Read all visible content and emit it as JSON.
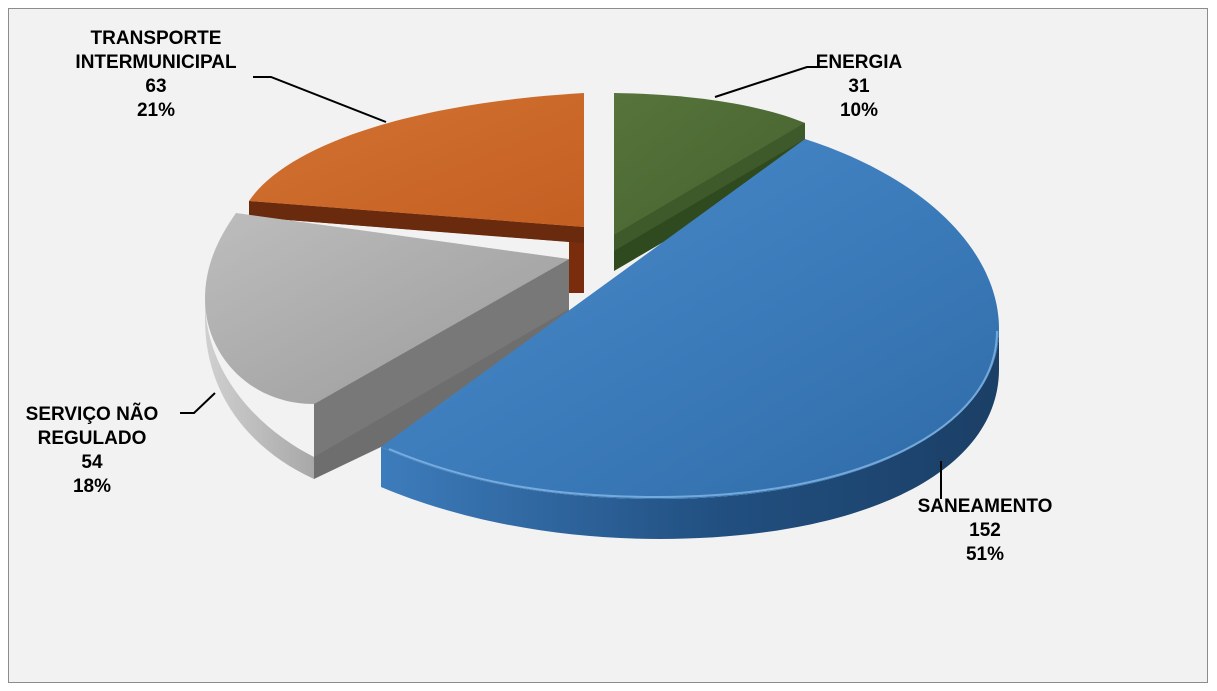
{
  "chart_data": {
    "type": "pie",
    "style": "3d-exploded",
    "slices": [
      {
        "label": "ENERGIA",
        "value": 31,
        "percent": "10%",
        "color": "#4f6b36"
      },
      {
        "label": "SANEAMENTO",
        "value": 152,
        "percent": "51%",
        "color": "#3a79b8"
      },
      {
        "label": "SERVIÇO NÃO REGULADO",
        "value": 54,
        "percent": "18%",
        "color": "#a6a6a6"
      },
      {
        "label": "TRANSPORTE INTERMUNICIPAL",
        "value": 63,
        "percent": "21%",
        "color": "#cc6a2a"
      }
    ],
    "labels": {
      "energia": {
        "line1": "ENERGIA",
        "value": "31",
        "percent": "10%"
      },
      "saneamento": {
        "line1": "SANEAMENTO",
        "value": "152",
        "percent": "51%"
      },
      "servico": {
        "line1": "SERVIÇO NÃO",
        "line2": "REGULADO",
        "value": "54",
        "percent": "18%"
      },
      "transporte": {
        "line1": "TRANSPORTE",
        "line2": "INTERMUNICIPAL",
        "value": "63",
        "percent": "21%"
      }
    }
  }
}
